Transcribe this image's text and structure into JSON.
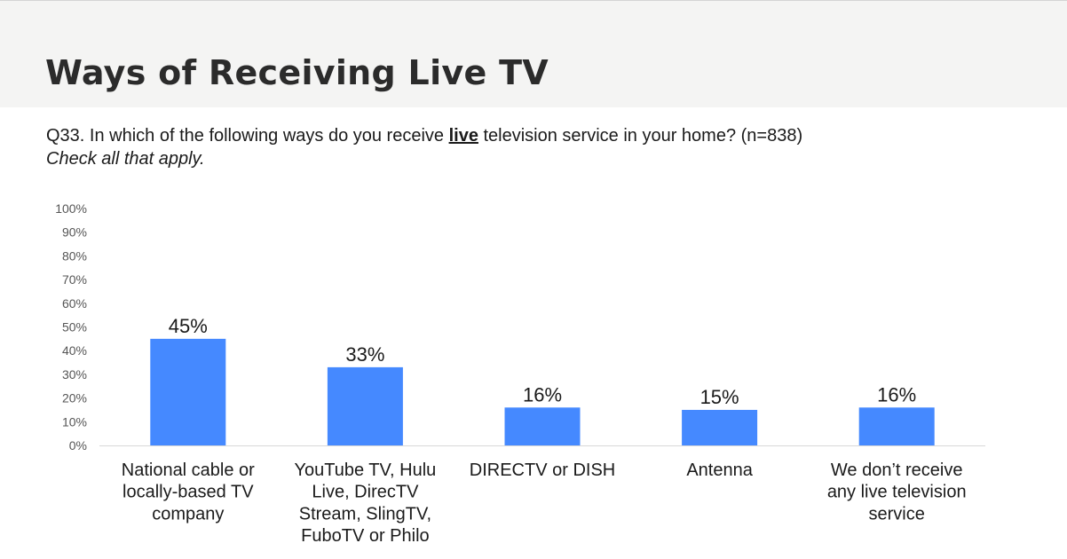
{
  "page": {
    "title": "Ways of Receiving Live TV",
    "question_prefix": "Q33. In which of the following ways do you receive ",
    "question_emphasis": "live",
    "question_suffix": " television service in your home? (n=838)",
    "instruction": "Check all that apply."
  },
  "chart_data": {
    "type": "bar",
    "categories": [
      [
        "National cable or",
        "locally-based TV",
        "company"
      ],
      [
        "YouTube TV, Hulu",
        "Live, DirecTV",
        "Stream, SlingTV,",
        "FuboTV or Philo"
      ],
      [
        "DIRECTV or DISH"
      ],
      [
        "Antenna"
      ],
      [
        "We don’t receive",
        "any live television",
        "service"
      ]
    ],
    "values": [
      45,
      33,
      16,
      15,
      16
    ],
    "data_labels": [
      "45%",
      "33%",
      "16%",
      "15%",
      "16%"
    ],
    "ylim": [
      0,
      100
    ],
    "yticks": [
      0,
      10,
      20,
      30,
      40,
      50,
      60,
      70,
      80,
      90,
      100
    ],
    "ytick_labels": [
      "0%",
      "10%",
      "20%",
      "30%",
      "40%",
      "50%",
      "60%",
      "70%",
      "80%",
      "90%",
      "100%"
    ],
    "bar_color": "#4589ff",
    "grid": false,
    "legend": "none"
  }
}
